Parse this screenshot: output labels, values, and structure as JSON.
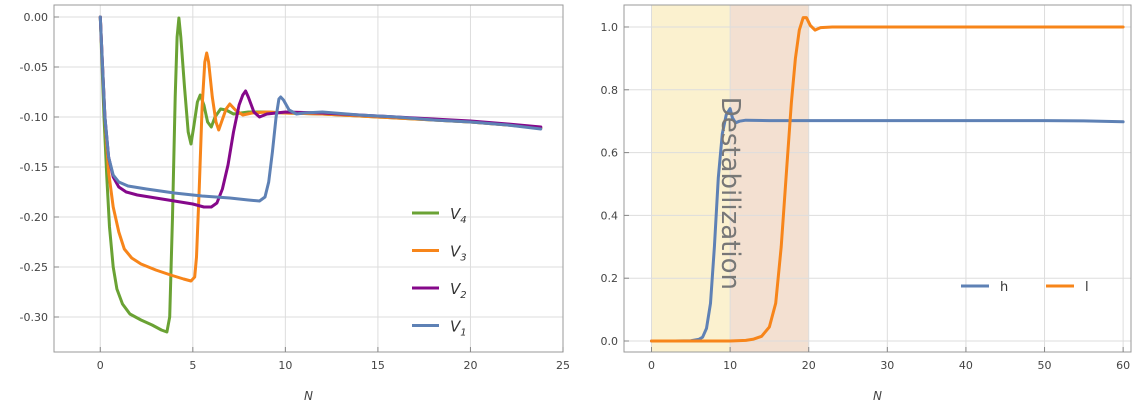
{
  "chart_data": [
    {
      "type": "line",
      "xlabel": "N",
      "ylabel": "",
      "xlim": [
        -2.5,
        25
      ],
      "ylim": [
        -0.335,
        0.012
      ],
      "grid": true,
      "legend_position": "bottom-right",
      "x_ticks": [
        0,
        5,
        10,
        15,
        20,
        25
      ],
      "x_tick_labels": [
        "0",
        "5",
        "10",
        "15",
        "20",
        "25"
      ],
      "y_ticks": [
        0,
        -0.05,
        -0.1,
        -0.15,
        -0.2,
        -0.25,
        -0.3
      ],
      "y_tick_labels": [
        "0.00",
        "-0.05",
        "-0.10",
        "-0.15",
        "-0.20",
        "-0.25",
        "-0.30"
      ],
      "series": [
        {
          "name": "V",
          "subscript": "4",
          "color": "#6aa234",
          "points": [
            [
              0,
              0
            ],
            [
              0.1,
              -0.05
            ],
            [
              0.2,
              -0.1
            ],
            [
              0.35,
              -0.16
            ],
            [
              0.5,
              -0.21
            ],
            [
              0.7,
              -0.25
            ],
            [
              0.9,
              -0.272
            ],
            [
              1.2,
              -0.287
            ],
            [
              1.6,
              -0.297
            ],
            [
              2.2,
              -0.303
            ],
            [
              2.8,
              -0.308
            ],
            [
              3.3,
              -0.313
            ],
            [
              3.6,
              -0.315
            ],
            [
              3.75,
              -0.3
            ],
            [
              3.9,
              -0.2
            ],
            [
              4.05,
              -0.08
            ],
            [
              4.15,
              -0.02
            ],
            [
              4.25,
              -0.001
            ],
            [
              4.35,
              -0.02
            ],
            [
              4.55,
              -0.07
            ],
            [
              4.75,
              -0.115
            ],
            [
              4.9,
              -0.127
            ],
            [
              5.05,
              -0.11
            ],
            [
              5.25,
              -0.085
            ],
            [
              5.4,
              -0.078
            ],
            [
              5.6,
              -0.088
            ],
            [
              5.8,
              -0.105
            ],
            [
              6.0,
              -0.11
            ],
            [
              6.2,
              -0.1
            ],
            [
              6.5,
              -0.092
            ],
            [
              6.8,
              -0.093
            ],
            [
              7.2,
              -0.097
            ],
            [
              8,
              -0.095
            ],
            [
              9,
              -0.095
            ],
            [
              10,
              -0.096
            ],
            [
              12,
              -0.097
            ],
            [
              14,
              -0.099
            ],
            [
              16,
              -0.101
            ],
            [
              18,
              -0.103
            ],
            [
              20,
              -0.105
            ],
            [
              22,
              -0.108
            ],
            [
              23.8,
              -0.111
            ]
          ]
        },
        {
          "name": "V",
          "subscript": "3",
          "color": "#f7851a",
          "points": [
            [
              0,
              0
            ],
            [
              0.1,
              -0.04
            ],
            [
              0.25,
              -0.1
            ],
            [
              0.45,
              -0.155
            ],
            [
              0.7,
              -0.19
            ],
            [
              1.0,
              -0.215
            ],
            [
              1.3,
              -0.232
            ],
            [
              1.7,
              -0.241
            ],
            [
              2.2,
              -0.247
            ],
            [
              3.0,
              -0.253
            ],
            [
              3.8,
              -0.258
            ],
            [
              4.5,
              -0.262
            ],
            [
              4.9,
              -0.264
            ],
            [
              5.1,
              -0.26
            ],
            [
              5.2,
              -0.24
            ],
            [
              5.35,
              -0.17
            ],
            [
              5.5,
              -0.09
            ],
            [
              5.65,
              -0.045
            ],
            [
              5.75,
              -0.036
            ],
            [
              5.85,
              -0.045
            ],
            [
              6.05,
              -0.08
            ],
            [
              6.25,
              -0.105
            ],
            [
              6.4,
              -0.113
            ],
            [
              6.55,
              -0.105
            ],
            [
              6.8,
              -0.092
            ],
            [
              7.0,
              -0.087
            ],
            [
              7.3,
              -0.093
            ],
            [
              7.7,
              -0.098
            ],
            [
              8.2,
              -0.096
            ],
            [
              9,
              -0.095
            ],
            [
              10,
              -0.096
            ],
            [
              12,
              -0.097
            ],
            [
              14,
              -0.099
            ],
            [
              16,
              -0.101
            ],
            [
              18,
              -0.103
            ],
            [
              20,
              -0.105
            ],
            [
              22,
              -0.108
            ],
            [
              23.8,
              -0.111
            ]
          ]
        },
        {
          "name": "V",
          "subscript": "2",
          "color": "#85088a",
          "points": [
            [
              0,
              0
            ],
            [
              0.1,
              -0.04
            ],
            [
              0.25,
              -0.1
            ],
            [
              0.45,
              -0.14
            ],
            [
              0.7,
              -0.16
            ],
            [
              1.0,
              -0.17
            ],
            [
              1.4,
              -0.175
            ],
            [
              2,
              -0.178
            ],
            [
              3,
              -0.181
            ],
            [
              4,
              -0.184
            ],
            [
              5,
              -0.187
            ],
            [
              5.6,
              -0.19
            ],
            [
              6.0,
              -0.19
            ],
            [
              6.3,
              -0.186
            ],
            [
              6.6,
              -0.172
            ],
            [
              6.9,
              -0.148
            ],
            [
              7.2,
              -0.115
            ],
            [
              7.5,
              -0.088
            ],
            [
              7.7,
              -0.078
            ],
            [
              7.85,
              -0.074
            ],
            [
              8.0,
              -0.08
            ],
            [
              8.3,
              -0.095
            ],
            [
              8.6,
              -0.1
            ],
            [
              9.0,
              -0.097
            ],
            [
              10,
              -0.095
            ],
            [
              12,
              -0.096
            ],
            [
              14,
              -0.098
            ],
            [
              16,
              -0.1
            ],
            [
              18,
              -0.102
            ],
            [
              20,
              -0.104
            ],
            [
              22,
              -0.107
            ],
            [
              23.8,
              -0.11
            ]
          ]
        },
        {
          "name": "V",
          "subscript": "1",
          "color": "#5e81b5",
          "points": [
            [
              0,
              0
            ],
            [
              0.1,
              -0.04
            ],
            [
              0.25,
              -0.1
            ],
            [
              0.45,
              -0.14
            ],
            [
              0.7,
              -0.158
            ],
            [
              1.0,
              -0.165
            ],
            [
              1.5,
              -0.169
            ],
            [
              2.5,
              -0.172
            ],
            [
              4,
              -0.176
            ],
            [
              5.5,
              -0.179
            ],
            [
              7,
              -0.181
            ],
            [
              8,
              -0.183
            ],
            [
              8.6,
              -0.184
            ],
            [
              8.9,
              -0.18
            ],
            [
              9.1,
              -0.165
            ],
            [
              9.3,
              -0.135
            ],
            [
              9.5,
              -0.1
            ],
            [
              9.65,
              -0.082
            ],
            [
              9.75,
              -0.08
            ],
            [
              9.9,
              -0.083
            ],
            [
              10.2,
              -0.093
            ],
            [
              10.6,
              -0.097
            ],
            [
              11,
              -0.096
            ],
            [
              12,
              -0.095
            ],
            [
              14,
              -0.098
            ],
            [
              16,
              -0.1
            ],
            [
              18,
              -0.103
            ],
            [
              20,
              -0.105
            ],
            [
              22,
              -0.108
            ],
            [
              23.8,
              -0.112
            ]
          ]
        }
      ]
    },
    {
      "type": "line",
      "xlabel": "N",
      "ylabel": "",
      "xlim": [
        -3.5,
        61
      ],
      "ylim": [
        -0.035,
        1.07
      ],
      "grid": true,
      "legend_position": "bottom-right",
      "x_ticks": [
        0,
        10,
        20,
        30,
        40,
        50,
        60
      ],
      "x_tick_labels": [
        "0",
        "10",
        "20",
        "30",
        "40",
        "50",
        "60"
      ],
      "y_ticks": [
        0,
        0.2,
        0.4,
        0.6,
        0.8,
        1.0
      ],
      "y_tick_labels": [
        "0.0",
        "0.2",
        "0.4",
        "0.6",
        "0.8",
        "1.0"
      ],
      "shaded_regions": [
        {
          "x_from": 0,
          "x_to": 10,
          "color": "#fbf1cf"
        },
        {
          "x_from": 10,
          "x_to": 20,
          "color": "#f3e0d1"
        }
      ],
      "annotation": {
        "text": "Destabilization",
        "x": 9.9,
        "y": 0.47,
        "rotation": 90
      },
      "series": [
        {
          "name": "h",
          "color": "#5e81b5",
          "points": [
            [
              0,
              0
            ],
            [
              3,
              0
            ],
            [
              5,
              0.001
            ],
            [
              6,
              0.005
            ],
            [
              6.5,
              0.012
            ],
            [
              7,
              0.04
            ],
            [
              7.5,
              0.12
            ],
            [
              8,
              0.3
            ],
            [
              8.5,
              0.52
            ],
            [
              9,
              0.66
            ],
            [
              9.5,
              0.72
            ],
            [
              10,
              0.74
            ],
            [
              10.3,
              0.71
            ],
            [
              10.7,
              0.695
            ],
            [
              11.2,
              0.7
            ],
            [
              12,
              0.703
            ],
            [
              15,
              0.702
            ],
            [
              20,
              0.702
            ],
            [
              30,
              0.702
            ],
            [
              40,
              0.702
            ],
            [
              50,
              0.702
            ],
            [
              55,
              0.701
            ],
            [
              60,
              0.698
            ]
          ]
        },
        {
          "name": "l",
          "color": "#f7851a",
          "points": [
            [
              0,
              0
            ],
            [
              5,
              0
            ],
            [
              10,
              0
            ],
            [
              12,
              0.002
            ],
            [
              13,
              0.006
            ],
            [
              14,
              0.015
            ],
            [
              15,
              0.045
            ],
            [
              15.8,
              0.12
            ],
            [
              16.5,
              0.3
            ],
            [
              17.2,
              0.55
            ],
            [
              17.8,
              0.76
            ],
            [
              18.3,
              0.9
            ],
            [
              18.8,
              0.99
            ],
            [
              19.3,
              1.03
            ],
            [
              19.7,
              1.03
            ],
            [
              20.2,
              1.005
            ],
            [
              20.8,
              0.99
            ],
            [
              21.5,
              0.998
            ],
            [
              23,
              1.0
            ],
            [
              30,
              1.0
            ],
            [
              40,
              1.0
            ],
            [
              50,
              1.0
            ],
            [
              60,
              1.0
            ]
          ]
        }
      ]
    }
  ]
}
